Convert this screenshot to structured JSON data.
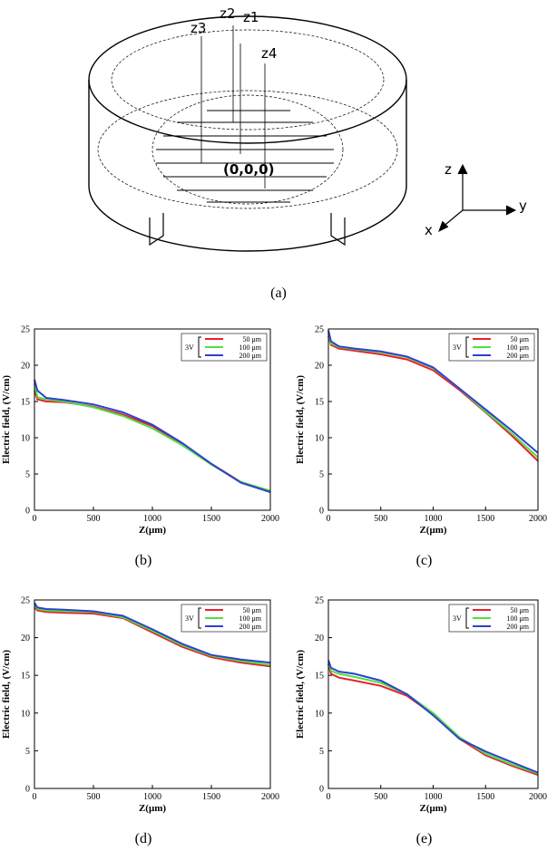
{
  "diagram": {
    "labels": [
      "z3",
      "z2",
      "z1",
      "z4"
    ],
    "origin": "(0,0,0)",
    "axes": [
      "z",
      "y",
      "x"
    ],
    "caption": "(a)"
  },
  "chart_data": [
    {
      "type": "line",
      "caption": "(b)",
      "xlabel": "Z(μm)",
      "ylabel": "Electric field, (V/cm)",
      "legend_title": "3V",
      "legend": "upper-right",
      "x": [
        0,
        25,
        100,
        250,
        500,
        750,
        1000,
        1250,
        1500,
        1750,
        2000
      ],
      "xlim": [
        0,
        2000
      ],
      "xticks": [
        0,
        500,
        1000,
        1500,
        2000
      ],
      "ylim": [
        0,
        25
      ],
      "yticks": [
        0,
        5,
        10,
        15,
        20,
        25
      ],
      "series": [
        {
          "name": "50 μm",
          "color": "#e8202a",
          "values": [
            16.5,
            15.3,
            15.0,
            14.9,
            14.3,
            13.2,
            11.6,
            9.2,
            6.4,
            3.9,
            2.6
          ]
        },
        {
          "name": "100 μm",
          "color": "#50e040",
          "values": [
            17.5,
            15.6,
            15.3,
            15.0,
            14.2,
            13.0,
            11.3,
            9.0,
            6.3,
            3.9,
            2.7
          ]
        },
        {
          "name": "200 μm",
          "color": "#3040d0",
          "values": [
            18.0,
            16.5,
            15.5,
            15.2,
            14.6,
            13.5,
            11.8,
            9.3,
            6.4,
            3.8,
            2.5
          ]
        }
      ]
    },
    {
      "type": "line",
      "caption": "(c)",
      "xlabel": "Z(μm)",
      "ylabel": "Electric field, (V/cm)",
      "legend_title": "3V",
      "legend": "upper-right",
      "x": [
        0,
        25,
        100,
        250,
        500,
        750,
        1000,
        1250,
        1500,
        1750,
        2000
      ],
      "xlim": [
        0,
        2000
      ],
      "xticks": [
        0,
        500,
        1000,
        1500,
        2000
      ],
      "ylim": [
        0,
        25
      ],
      "yticks": [
        0,
        5,
        10,
        15,
        20,
        25
      ],
      "series": [
        {
          "name": "50 μm",
          "color": "#e8202a",
          "values": [
            24.0,
            22.8,
            22.3,
            22.0,
            21.5,
            20.8,
            19.3,
            16.6,
            13.5,
            10.3,
            6.8
          ]
        },
        {
          "name": "100 μm",
          "color": "#50e040",
          "values": [
            24.5,
            23.0,
            22.5,
            22.2,
            21.8,
            21.1,
            19.6,
            16.8,
            13.6,
            10.6,
            7.3
          ]
        },
        {
          "name": "200 μm",
          "color": "#3040d0",
          "values": [
            24.8,
            23.3,
            22.6,
            22.3,
            21.9,
            21.2,
            19.7,
            16.8,
            13.9,
            11.0,
            7.9
          ]
        }
      ]
    },
    {
      "type": "line",
      "caption": "(d)",
      "xlabel": "Z(μm)",
      "ylabel": "Electric field, (V/cm)",
      "legend_title": "3V",
      "legend": "upper-right",
      "x": [
        0,
        25,
        100,
        250,
        500,
        750,
        1000,
        1250,
        1500,
        1750,
        2000
      ],
      "xlim": [
        0,
        2000
      ],
      "xticks": [
        0,
        500,
        1000,
        1500,
        2000
      ],
      "ylim": [
        0,
        25
      ],
      "yticks": [
        0,
        5,
        10,
        15,
        20,
        25
      ],
      "series": [
        {
          "name": "50 μm",
          "color": "#e8202a",
          "values": [
            24.0,
            23.6,
            23.4,
            23.3,
            23.2,
            22.6,
            20.7,
            18.8,
            17.4,
            16.7,
            16.2
          ]
        },
        {
          "name": "100 μm",
          "color": "#50e040",
          "values": [
            24.3,
            23.8,
            23.6,
            23.5,
            23.4,
            22.7,
            20.9,
            19.0,
            17.6,
            16.9,
            16.4
          ]
        },
        {
          "name": "200 μm",
          "color": "#3040d0",
          "values": [
            24.6,
            24.0,
            23.8,
            23.7,
            23.5,
            22.9,
            21.1,
            19.2,
            17.7,
            17.1,
            16.7
          ]
        }
      ]
    },
    {
      "type": "line",
      "caption": "(e)",
      "xlabel": "Z(μm)",
      "ylabel": "Electric field, (V/cm)",
      "legend_title": "3V",
      "legend": "upper-right",
      "x": [
        0,
        25,
        100,
        250,
        500,
        750,
        1000,
        1250,
        1500,
        1750,
        2000
      ],
      "xlim": [
        0,
        2000
      ],
      "xticks": [
        0,
        500,
        1000,
        1500,
        2000
      ],
      "ylim": [
        0,
        25
      ],
      "yticks": [
        0,
        5,
        10,
        15,
        20,
        25
      ],
      "series": [
        {
          "name": "50 μm",
          "color": "#e8202a",
          "values": [
            16.5,
            15.2,
            14.7,
            14.3,
            13.6,
            12.3,
            9.8,
            6.6,
            4.4,
            3.0,
            1.8
          ]
        },
        {
          "name": "100 μm",
          "color": "#50e040",
          "values": [
            16.8,
            15.6,
            15.2,
            14.8,
            14.0,
            12.5,
            10.0,
            6.8,
            4.6,
            3.2,
            2.0
          ]
        },
        {
          "name": "200 μm",
          "color": "#3040d0",
          "values": [
            17.0,
            16.0,
            15.5,
            15.2,
            14.3,
            12.5,
            9.7,
            6.6,
            4.9,
            3.5,
            2.1
          ]
        }
      ]
    }
  ]
}
